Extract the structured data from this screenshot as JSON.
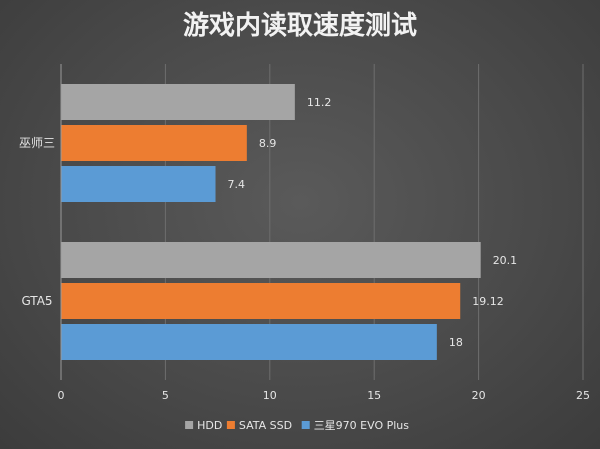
{
  "chart_data": {
    "type": "bar",
    "orientation": "horizontal",
    "title": "游戏内读取速度测试",
    "categories": [
      "巫师三",
      "GTA5"
    ],
    "series": [
      {
        "name": "HDD",
        "values": [
          11.2,
          20.1
        ],
        "labels": [
          "11.2",
          "20.1"
        ],
        "color": "#a5a5a5"
      },
      {
        "name": "SATA SSD",
        "values": [
          8.9,
          19.12
        ],
        "labels": [
          "8.9",
          "19.12"
        ],
        "color": "#ed7d31"
      },
      {
        "name": "三星970 EVO Plus",
        "values": [
          7.4,
          18
        ],
        "labels": [
          "7.4",
          "18"
        ],
        "color": "#5b9bd5"
      }
    ],
    "xlim": [
      0,
      25
    ],
    "xticks": [
      0,
      5,
      10,
      15,
      20,
      25
    ],
    "xlabel": "",
    "ylabel": "",
    "grid": true,
    "legend_position": "bottom"
  }
}
